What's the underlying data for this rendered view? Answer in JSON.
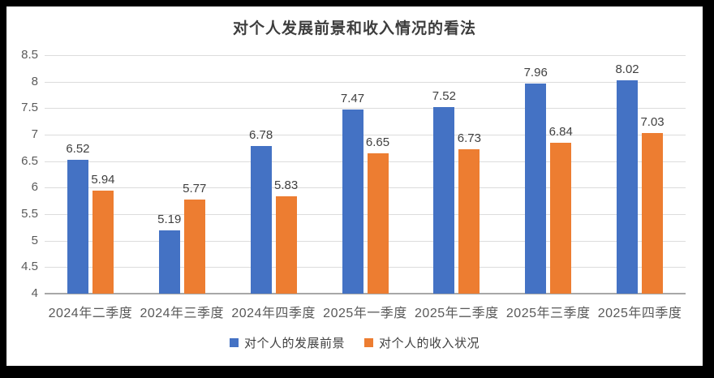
{
  "frame": {
    "background_color": "#000000",
    "surface_color": "#ffffff"
  },
  "chart_data": {
    "type": "bar",
    "title": "对个人发展前景和收入情况的看法",
    "categories": [
      "2024年二季度",
      "2024年三季度",
      "2024年四季度",
      "2025年一季度",
      "2025年二季度",
      "2025年三季度",
      "2025年四季度"
    ],
    "series": [
      {
        "name": "对个人的发展前景",
        "color": "#4472C4",
        "values": [
          6.52,
          5.19,
          6.78,
          7.47,
          7.52,
          7.96,
          8.02
        ]
      },
      {
        "name": "对个人的收入状况",
        "color": "#ED7D31",
        "values": [
          5.94,
          5.77,
          5.83,
          6.65,
          6.73,
          6.84,
          7.03
        ]
      }
    ],
    "xlabel": "",
    "ylabel": "",
    "ylim": [
      4,
      8.5
    ],
    "ytick_step": 0.5,
    "ytick_labels": [
      "4",
      "4.5",
      "5",
      "5.5",
      "6",
      "6.5",
      "7",
      "7.5",
      "8",
      "8.5"
    ],
    "grid": true,
    "data_labels": true,
    "legend_position": "bottom",
    "gridline_color": "#dcdcdc",
    "axisline_color": "#a8a8a8",
    "tick_label_color": "#5a5a5a",
    "data_label_color": "#404040",
    "title_color": "#3d3d3d"
  }
}
